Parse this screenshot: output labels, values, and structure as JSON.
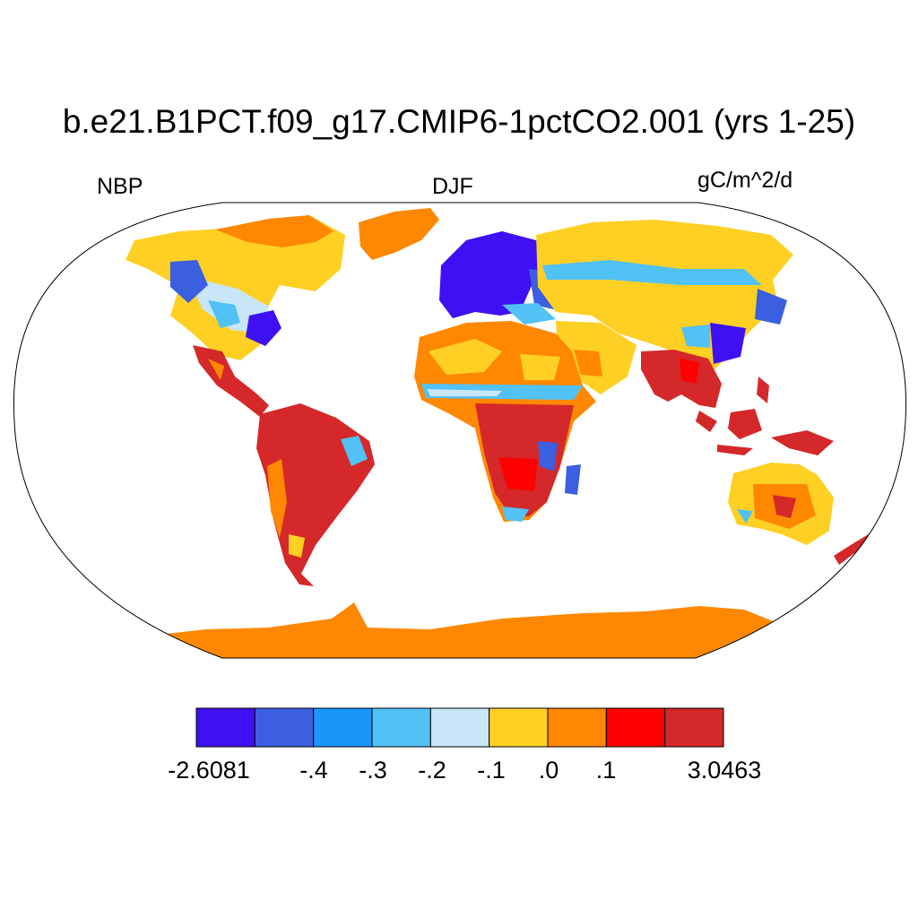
{
  "title": "b.e21.B1PCT.f09_g17.CMIP6-1pctCO2.001 (yrs 1-25)",
  "left_label": "NBP",
  "center_label": "DJF",
  "units": "gC/m^2/d",
  "colorbar": {
    "colors": [
      "#4010f5",
      "#3b5fe0",
      "#1a96fa",
      "#52c1f5",
      "#c8e6f8",
      "#ffd024",
      "#ff8800",
      "#ff0000",
      "#d4282a"
    ],
    "labels": [
      "-2.6081",
      "-.4",
      "-.3",
      "-.2",
      "-.1",
      ".0",
      ".1",
      "3.0463"
    ]
  }
}
